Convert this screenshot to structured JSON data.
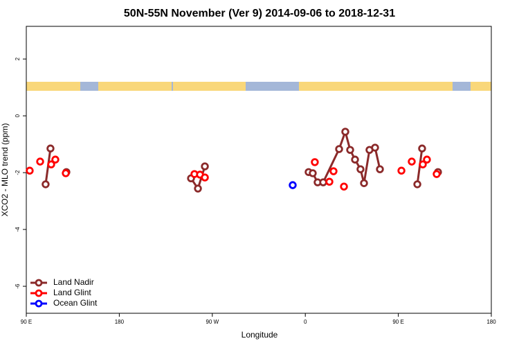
{
  "chart_data": {
    "type": "line",
    "title": "50N-55N November (Ver 9)   2014-09-06 to 2018-12-31",
    "xlabel": "Longitude",
    "ylabel": "XCO2 - MLO trend (ppm)",
    "xlim": [
      90,
      540
    ],
    "xticks": [
      {
        "value": 90,
        "label": "90 E"
      },
      {
        "value": 180,
        "label": "180"
      },
      {
        "value": 270,
        "label": "90 W"
      },
      {
        "value": 360,
        "label": "0"
      },
      {
        "value": 450,
        "label": "90 E"
      },
      {
        "value": 540,
        "label": "180"
      }
    ],
    "ylim": [
      -6.95,
      3.15
    ],
    "yticks": [
      -6,
      -4,
      -2,
      0,
      2
    ],
    "legend": "bottom-left",
    "series": [
      {
        "name": "Land Nadir",
        "color": "#8b2a2a",
        "x": [
          108.7,
          113.4,
          null,
          128.8,
          null,
          249.4,
          256.1,
          262.8,
          null,
          363.2,
          367.2,
          371.9,
          377.3,
          392.7,
          398.7,
          403.4,
          408.1,
          413.4,
          416.8,
          422.1,
          427.5,
          432.2,
          null,
          468.4,
          473.0,
          null,
          488.4
        ],
        "values": [
          -2.41,
          -1.15,
          null,
          -1.98,
          null,
          -2.2,
          -2.56,
          -1.78,
          null,
          -1.98,
          -2.02,
          -2.34,
          -2.34,
          -1.17,
          -0.56,
          -1.2,
          -1.54,
          -1.88,
          -2.37,
          -1.2,
          -1.12,
          -1.88,
          null,
          -2.41,
          -1.15,
          null,
          -1.98
        ]
      },
      {
        "name": "Land Glint",
        "color": "#ff0000",
        "x": [
          93.3,
          null,
          103.4,
          null,
          114.1,
          118.1,
          null,
          128.2,
          null,
          252.7,
          null,
          258.1,
          null,
          262.8,
          null,
          369.2,
          null,
          383.3,
          null,
          387.3,
          null,
          397.4,
          null,
          453.0,
          null,
          463.0,
          null,
          473.7,
          477.7,
          null,
          487.1
        ],
        "values": [
          -1.93,
          null,
          -1.61,
          null,
          -1.71,
          -1.54,
          null,
          -2.02,
          null,
          -2.05,
          null,
          -2.07,
          null,
          -2.17,
          null,
          -1.63,
          null,
          -2.32,
          null,
          -1.95,
          null,
          -2.49,
          null,
          -1.93,
          null,
          -1.61,
          null,
          -1.71,
          -1.54,
          null,
          -2.05
        ]
      },
      {
        "name": "Ocean Glint",
        "color": "#0000ff",
        "x": [
          347.8
        ],
        "values": [
          -2.44
        ]
      }
    ]
  }
}
